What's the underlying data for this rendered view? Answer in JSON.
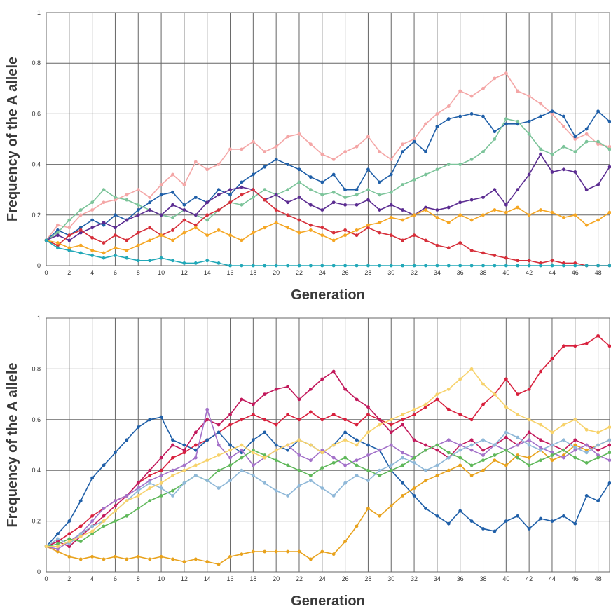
{
  "chart_data": [
    {
      "type": "line",
      "xlabel": "Generation",
      "ylabel": "Frequency of the A allele",
      "x": [
        0,
        1,
        2,
        3,
        4,
        5,
        6,
        7,
        8,
        9,
        10,
        11,
        12,
        13,
        14,
        15,
        16,
        17,
        18,
        19,
        20,
        21,
        22,
        23,
        24,
        25,
        26,
        27,
        28,
        29,
        30,
        31,
        32,
        33,
        34,
        35,
        36,
        37,
        38,
        39,
        40,
        41,
        42,
        43,
        44,
        45,
        46,
        47,
        48,
        49
      ],
      "xlim": [
        0,
        49
      ],
      "xticks": [
        0,
        2,
        4,
        6,
        8,
        10,
        12,
        14,
        16,
        18,
        20,
        22,
        24,
        26,
        28,
        30,
        32,
        34,
        36,
        38,
        40,
        42,
        44,
        46,
        48
      ],
      "ylim": [
        0,
        1
      ],
      "yticks": [
        0,
        0.2,
        0.4,
        0.6,
        0.8,
        1
      ],
      "grid": true,
      "markers": true,
      "series": [
        {
          "color": "#f4a6a6",
          "values": [
            0.1,
            0.16,
            0.15,
            0.2,
            0.22,
            0.25,
            0.26,
            0.28,
            0.3,
            0.27,
            0.32,
            0.36,
            0.32,
            0.41,
            0.38,
            0.4,
            0.46,
            0.46,
            0.49,
            0.45,
            0.47,
            0.51,
            0.52,
            0.48,
            0.44,
            0.42,
            0.45,
            0.47,
            0.51,
            0.45,
            0.42,
            0.48,
            0.5,
            0.56,
            0.6,
            0.63,
            0.69,
            0.67,
            0.7,
            0.74,
            0.76,
            0.69,
            0.67,
            0.64,
            0.6,
            0.55,
            0.5,
            0.52,
            0.48,
            0.47
          ]
        },
        {
          "color": "#1f5fa8",
          "values": [
            0.1,
            0.14,
            0.12,
            0.15,
            0.18,
            0.16,
            0.2,
            0.18,
            0.22,
            0.25,
            0.28,
            0.29,
            0.24,
            0.27,
            0.25,
            0.3,
            0.28,
            0.33,
            0.36,
            0.39,
            0.42,
            0.4,
            0.38,
            0.35,
            0.33,
            0.36,
            0.3,
            0.3,
            0.38,
            0.33,
            0.36,
            0.45,
            0.49,
            0.45,
            0.55,
            0.58,
            0.59,
            0.6,
            0.59,
            0.53,
            0.56,
            0.56,
            0.57,
            0.59,
            0.61,
            0.59,
            0.51,
            0.54,
            0.61,
            0.57
          ]
        },
        {
          "color": "#7cc49a",
          "values": [
            0.1,
            0.13,
            0.18,
            0.22,
            0.25,
            0.3,
            0.27,
            0.26,
            0.24,
            0.22,
            0.2,
            0.19,
            0.22,
            0.2,
            0.18,
            0.22,
            0.25,
            0.24,
            0.27,
            0.3,
            0.28,
            0.3,
            0.33,
            0.3,
            0.28,
            0.29,
            0.27,
            0.28,
            0.3,
            0.28,
            0.29,
            0.32,
            0.34,
            0.36,
            0.38,
            0.4,
            0.4,
            0.42,
            0.45,
            0.5,
            0.58,
            0.57,
            0.52,
            0.46,
            0.44,
            0.47,
            0.45,
            0.49,
            0.49,
            0.46
          ]
        },
        {
          "color": "#5b2c91",
          "values": [
            0.1,
            0.12,
            0.1,
            0.13,
            0.15,
            0.17,
            0.15,
            0.18,
            0.2,
            0.22,
            0.2,
            0.24,
            0.22,
            0.2,
            0.25,
            0.28,
            0.3,
            0.31,
            0.3,
            0.26,
            0.28,
            0.25,
            0.27,
            0.24,
            0.22,
            0.25,
            0.24,
            0.24,
            0.26,
            0.22,
            0.24,
            0.22,
            0.2,
            0.23,
            0.22,
            0.23,
            0.25,
            0.26,
            0.27,
            0.3,
            0.24,
            0.3,
            0.36,
            0.44,
            0.37,
            0.38,
            0.37,
            0.3,
            0.32,
            0.39
          ]
        },
        {
          "color": "#d62f3a",
          "values": [
            0.1,
            0.08,
            0.12,
            0.14,
            0.11,
            0.09,
            0.12,
            0.1,
            0.13,
            0.15,
            0.12,
            0.14,
            0.18,
            0.16,
            0.2,
            0.22,
            0.25,
            0.28,
            0.3,
            0.26,
            0.22,
            0.2,
            0.18,
            0.16,
            0.15,
            0.13,
            0.14,
            0.12,
            0.15,
            0.13,
            0.12,
            0.1,
            0.12,
            0.1,
            0.08,
            0.07,
            0.09,
            0.06,
            0.05,
            0.04,
            0.03,
            0.02,
            0.02,
            0.01,
            0.02,
            0.01,
            0.01,
            0,
            0,
            0
          ]
        },
        {
          "color": "#f5a623",
          "values": [
            0.1,
            0.09,
            0.07,
            0.08,
            0.06,
            0.05,
            0.07,
            0.06,
            0.08,
            0.1,
            0.12,
            0.1,
            0.13,
            0.15,
            0.12,
            0.14,
            0.12,
            0.1,
            0.13,
            0.15,
            0.17,
            0.15,
            0.13,
            0.14,
            0.12,
            0.1,
            0.12,
            0.14,
            0.16,
            0.17,
            0.19,
            0.18,
            0.2,
            0.22,
            0.19,
            0.17,
            0.2,
            0.18,
            0.2,
            0.22,
            0.21,
            0.23,
            0.2,
            0.22,
            0.21,
            0.19,
            0.2,
            0.16,
            0.18,
            0.21
          ]
        },
        {
          "color": "#21a8b8",
          "values": [
            0.1,
            0.07,
            0.06,
            0.05,
            0.04,
            0.03,
            0.04,
            0.03,
            0.02,
            0.02,
            0.03,
            0.02,
            0.01,
            0.01,
            0.02,
            0.01,
            0,
            0,
            0,
            0,
            0,
            0,
            0,
            0,
            0,
            0,
            0,
            0,
            0,
            0,
            0,
            0,
            0,
            0,
            0,
            0,
            0,
            0,
            0,
            0,
            0,
            0,
            0,
            0,
            0,
            0,
            0,
            0,
            0,
            0
          ]
        }
      ]
    },
    {
      "type": "line",
      "xlabel": "Generation",
      "ylabel": "Frequency of the A allele",
      "x": [
        0,
        1,
        2,
        3,
        4,
        5,
        6,
        7,
        8,
        9,
        10,
        11,
        12,
        13,
        14,
        15,
        16,
        17,
        18,
        19,
        20,
        21,
        22,
        23,
        24,
        25,
        26,
        27,
        28,
        29,
        30,
        31,
        32,
        33,
        34,
        35,
        36,
        37,
        38,
        39,
        40,
        41,
        42,
        43,
        44,
        45,
        46,
        47,
        48,
        49
      ],
      "xlim": [
        0,
        49
      ],
      "xticks": [
        0,
        2,
        4,
        6,
        8,
        10,
        12,
        14,
        16,
        18,
        20,
        22,
        24,
        26,
        28,
        30,
        32,
        34,
        36,
        38,
        40,
        42,
        44,
        46,
        48
      ],
      "ylim": [
        0,
        1
      ],
      "yticks": [
        0,
        0.2,
        0.4,
        0.6,
        0.8,
        1
      ],
      "grid": true,
      "markers": true,
      "series": [
        {
          "color": "#d81f3c",
          "values": [
            0.1,
            0.12,
            0.15,
            0.18,
            0.22,
            0.25,
            0.28,
            0.3,
            0.35,
            0.38,
            0.4,
            0.45,
            0.47,
            0.5,
            0.52,
            0.55,
            0.58,
            0.6,
            0.62,
            0.6,
            0.58,
            0.62,
            0.6,
            0.63,
            0.6,
            0.62,
            0.6,
            0.58,
            0.62,
            0.6,
            0.58,
            0.6,
            0.62,
            0.65,
            0.68,
            0.64,
            0.62,
            0.6,
            0.66,
            0.7,
            0.76,
            0.7,
            0.72,
            0.79,
            0.84,
            0.89,
            0.89,
            0.9,
            0.93,
            0.89
          ]
        },
        {
          "color": "#1f5fa8",
          "values": [
            0.1,
            0.15,
            0.2,
            0.28,
            0.37,
            0.42,
            0.47,
            0.52,
            0.57,
            0.6,
            0.61,
            0.52,
            0.5,
            0.48,
            0.52,
            0.55,
            0.5,
            0.47,
            0.52,
            0.55,
            0.5,
            0.48,
            0.52,
            0.5,
            0.47,
            0.5,
            0.55,
            0.52,
            0.5,
            0.48,
            0.4,
            0.35,
            0.3,
            0.25,
            0.22,
            0.19,
            0.24,
            0.2,
            0.17,
            0.16,
            0.2,
            0.22,
            0.17,
            0.21,
            0.2,
            0.22,
            0.19,
            0.3,
            0.28,
            0.35
          ]
        },
        {
          "color": "#e8a21c",
          "values": [
            0.1,
            0.08,
            0.06,
            0.05,
            0.06,
            0.05,
            0.06,
            0.05,
            0.06,
            0.05,
            0.06,
            0.05,
            0.04,
            0.05,
            0.04,
            0.03,
            0.06,
            0.07,
            0.08,
            0.08,
            0.08,
            0.08,
            0.08,
            0.05,
            0.08,
            0.07,
            0.12,
            0.18,
            0.25,
            0.22,
            0.26,
            0.3,
            0.33,
            0.36,
            0.38,
            0.4,
            0.42,
            0.38,
            0.4,
            0.44,
            0.42,
            0.46,
            0.45,
            0.48,
            0.44,
            0.46,
            0.5,
            0.48,
            0.5,
            0.52
          ]
        },
        {
          "color": "#c2185b",
          "values": [
            0.1,
            0.12,
            0.1,
            0.14,
            0.18,
            0.22,
            0.26,
            0.3,
            0.35,
            0.4,
            0.45,
            0.5,
            0.48,
            0.55,
            0.6,
            0.58,
            0.62,
            0.68,
            0.66,
            0.7,
            0.72,
            0.73,
            0.68,
            0.72,
            0.76,
            0.79,
            0.72,
            0.68,
            0.65,
            0.6,
            0.55,
            0.58,
            0.52,
            0.5,
            0.48,
            0.45,
            0.5,
            0.52,
            0.48,
            0.5,
            0.53,
            0.5,
            0.55,
            0.52,
            0.5,
            0.48,
            0.52,
            0.5,
            0.48,
            0.5
          ]
        },
        {
          "color": "#a371c9",
          "values": [
            0.1,
            0.09,
            0.12,
            0.15,
            0.2,
            0.25,
            0.28,
            0.3,
            0.33,
            0.36,
            0.38,
            0.4,
            0.42,
            0.45,
            0.64,
            0.5,
            0.45,
            0.48,
            0.42,
            0.45,
            0.48,
            0.5,
            0.46,
            0.44,
            0.48,
            0.45,
            0.42,
            0.44,
            0.46,
            0.48,
            0.5,
            0.47,
            0.45,
            0.48,
            0.5,
            0.52,
            0.5,
            0.48,
            0.46,
            0.5,
            0.48,
            0.5,
            0.52,
            0.49,
            0.47,
            0.45,
            0.48,
            0.5,
            0.46,
            0.44
          ]
        },
        {
          "color": "#5fb85a",
          "values": [
            0.1,
            0.11,
            0.13,
            0.12,
            0.15,
            0.18,
            0.2,
            0.22,
            0.25,
            0.28,
            0.3,
            0.32,
            0.35,
            0.38,
            0.36,
            0.4,
            0.42,
            0.45,
            0.48,
            0.46,
            0.44,
            0.42,
            0.4,
            0.38,
            0.41,
            0.43,
            0.45,
            0.42,
            0.4,
            0.38,
            0.4,
            0.42,
            0.45,
            0.48,
            0.5,
            0.47,
            0.45,
            0.42,
            0.44,
            0.46,
            0.48,
            0.45,
            0.42,
            0.44,
            0.46,
            0.48,
            0.45,
            0.43,
            0.45,
            0.47
          ]
        },
        {
          "color": "#8fb8d8",
          "values": [
            0.1,
            0.13,
            0.11,
            0.15,
            0.18,
            0.2,
            0.24,
            0.28,
            0.32,
            0.35,
            0.33,
            0.3,
            0.35,
            0.38,
            0.36,
            0.33,
            0.36,
            0.4,
            0.38,
            0.35,
            0.32,
            0.3,
            0.34,
            0.36,
            0.33,
            0.3,
            0.35,
            0.38,
            0.36,
            0.4,
            0.42,
            0.45,
            0.43,
            0.4,
            0.42,
            0.45,
            0.48,
            0.5,
            0.52,
            0.5,
            0.55,
            0.53,
            0.5,
            0.48,
            0.5,
            0.52,
            0.49,
            0.47,
            0.5,
            0.52
          ]
        },
        {
          "color": "#f7d26a",
          "values": [
            0.1,
            0.1,
            0.12,
            0.14,
            0.16,
            0.2,
            0.24,
            0.28,
            0.3,
            0.33,
            0.35,
            0.38,
            0.4,
            0.42,
            0.44,
            0.46,
            0.48,
            0.5,
            0.47,
            0.45,
            0.48,
            0.5,
            0.52,
            0.5,
            0.47,
            0.5,
            0.52,
            0.5,
            0.55,
            0.58,
            0.6,
            0.62,
            0.64,
            0.66,
            0.7,
            0.72,
            0.76,
            0.8,
            0.74,
            0.7,
            0.65,
            0.62,
            0.6,
            0.58,
            0.55,
            0.58,
            0.6,
            0.56,
            0.55,
            0.57
          ]
        }
      ]
    }
  ]
}
